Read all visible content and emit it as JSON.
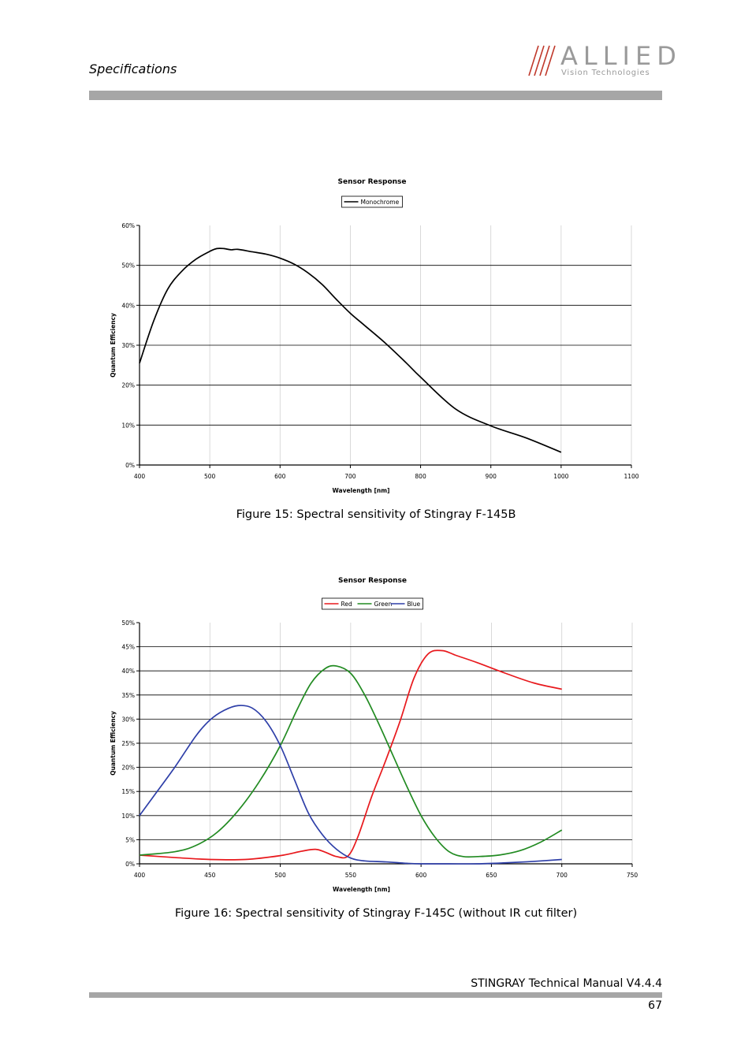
{
  "header": {
    "section_title": "Specifications",
    "logo_text": "ALLIED",
    "logo_subtext": "Vision Technologies",
    "logo_color": "#9a9a9a",
    "logo_accent": "#c0392b"
  },
  "captions": {
    "figure15": "Figure 15: Spectral sensitivity of Stingray F-145B",
    "figure16": "Figure 16: Spectral sensitivity of Stingray F-145C (without IR cut filter)"
  },
  "footer": {
    "manual": "STINGRAY Technical Manual V4.4.4",
    "page": "67"
  },
  "chart_data": [
    {
      "type": "line",
      "title": "Sensor Response",
      "xlabel": "Wavelength [nm]",
      "ylabel": "Quantum Efficiency",
      "xlim": [
        400,
        1100
      ],
      "ylim": [
        0,
        60
      ],
      "xticks": [
        400,
        500,
        600,
        700,
        800,
        900,
        1000,
        1100
      ],
      "yticks": [
        0,
        10,
        20,
        30,
        40,
        50,
        60
      ],
      "ytick_suffix": "%",
      "legend_position": "top-center",
      "series": [
        {
          "name": "Monochrome",
          "color": "#000000",
          "x": [
            400,
            420,
            440,
            460,
            480,
            500,
            510,
            520,
            530,
            540,
            560,
            580,
            600,
            620,
            640,
            660,
            680,
            700,
            720,
            750,
            780,
            800,
            850,
            900,
            950,
            1000
          ],
          "y": [
            25.5,
            36,
            44,
            48.5,
            51.5,
            53.5,
            54.2,
            54.2,
            53.9,
            54,
            53.4,
            52.8,
            51.8,
            50.3,
            48.1,
            45.2,
            41.5,
            38,
            35,
            30.5,
            25.5,
            22,
            14,
            9.8,
            6.8,
            3.2
          ]
        }
      ]
    },
    {
      "type": "line",
      "title": "Sensor Response",
      "xlabel": "Wavelength [nm]",
      "ylabel": "Quantum Efficiency",
      "xlim": [
        400,
        750
      ],
      "ylim": [
        0,
        50
      ],
      "xticks": [
        400,
        450,
        500,
        550,
        600,
        650,
        700,
        750
      ],
      "yticks": [
        0,
        5,
        10,
        15,
        20,
        25,
        30,
        35,
        40,
        45,
        50
      ],
      "ytick_suffix": "%",
      "legend_position": "top-center",
      "series": [
        {
          "name": "Red",
          "color": "#e8191d",
          "x": [
            400,
            425,
            450,
            475,
            500,
            515,
            525,
            532,
            540,
            548,
            555,
            565,
            575,
            585,
            595,
            605,
            615,
            625,
            640,
            660,
            680,
            700
          ],
          "y": [
            1.8,
            1.3,
            0.9,
            0.9,
            1.7,
            2.6,
            3.0,
            2.4,
            1.5,
            1.6,
            5.5,
            14,
            21.5,
            29.5,
            38.5,
            43.5,
            44.2,
            43.2,
            41.7,
            39.5,
            37.5,
            36.2
          ]
        },
        {
          "name": "Green",
          "color": "#228b22",
          "x": [
            400,
            425,
            440,
            455,
            470,
            485,
            500,
            512,
            522,
            532,
            540,
            550,
            560,
            570,
            580,
            590,
            600,
            610,
            620,
            630,
            640,
            655,
            670,
            685,
            700
          ],
          "y": [
            1.8,
            2.5,
            3.8,
            6.5,
            11,
            17,
            24.5,
            32,
            37.5,
            40.5,
            41,
            39.5,
            35,
            29,
            22.5,
            16,
            10,
            5.5,
            2.5,
            1.5,
            1.5,
            1.8,
            2.7,
            4.5,
            7.0
          ]
        },
        {
          "name": "Blue",
          "color": "#2e3fa8",
          "x": [
            400,
            410,
            425,
            440,
            450,
            460,
            470,
            480,
            490,
            500,
            510,
            520,
            530,
            540,
            550,
            560,
            575,
            590,
            600,
            620,
            640,
            660,
            680,
            700
          ],
          "y": [
            10,
            14,
            20,
            26.5,
            29.8,
            31.8,
            32.8,
            32.3,
            29.5,
            24.5,
            17.5,
            10.5,
            6,
            3,
            1.2,
            0.6,
            0.4,
            0.1,
            0,
            0,
            0,
            0.2,
            0.5,
            0.9
          ]
        }
      ]
    }
  ]
}
